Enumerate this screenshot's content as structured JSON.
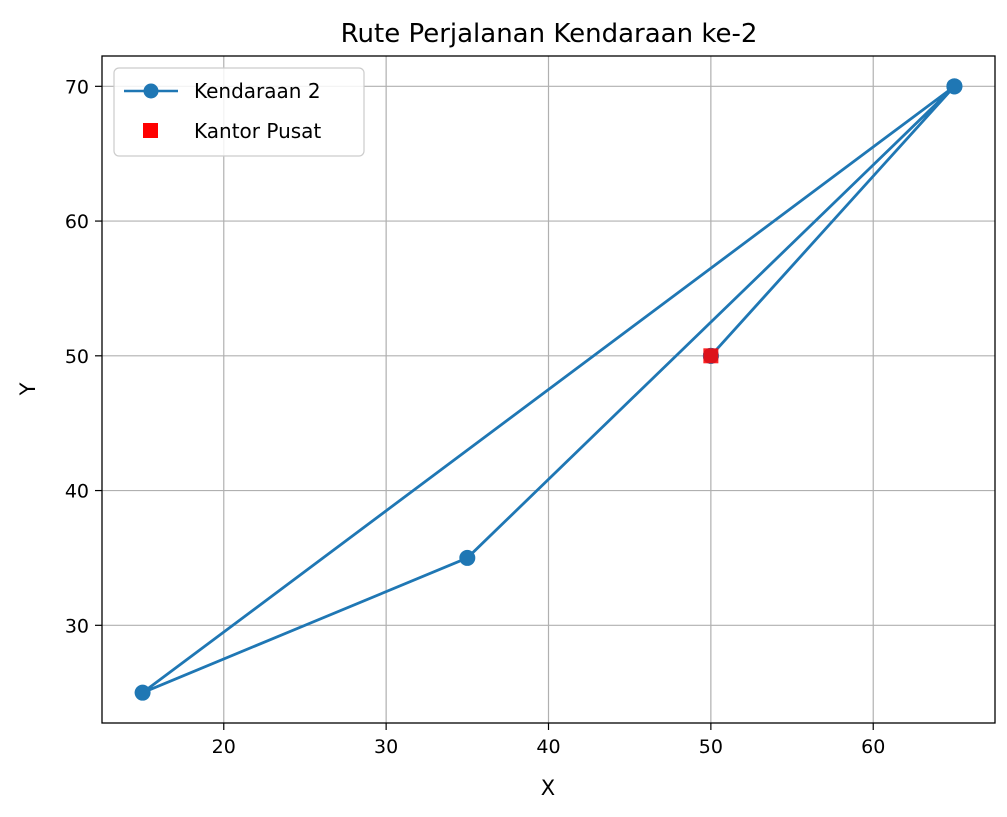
{
  "chart_data": {
    "type": "line",
    "title": "Rute Perjalanan Kendaraan ke-2",
    "xlabel": "X",
    "ylabel": "Y",
    "xlim": [
      12.5,
      67.5
    ],
    "ylim": [
      22.75,
      72.25
    ],
    "xticks": [
      20,
      30,
      40,
      50,
      60
    ],
    "yticks": [
      30,
      40,
      50,
      60,
      70
    ],
    "grid": true,
    "legend_position": "top-left",
    "series": [
      {
        "name": "Kendaraan 2",
        "kind": "line-marker",
        "color": "#1f77b4",
        "x": [
          50,
          65,
          35,
          15,
          65,
          50
        ],
        "y": [
          50,
          70,
          35,
          25,
          70,
          50
        ]
      },
      {
        "name": "Kantor Pusat",
        "kind": "square-marker",
        "color": "#ff0000",
        "x": [
          50
        ],
        "y": [
          50
        ]
      }
    ]
  }
}
